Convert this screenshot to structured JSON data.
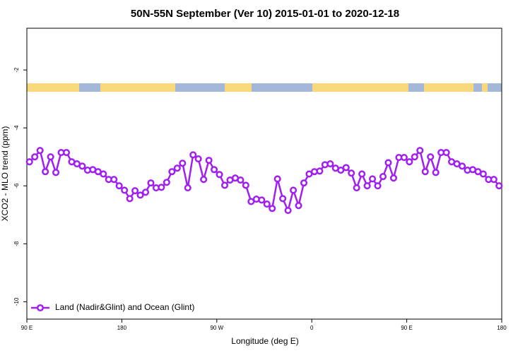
{
  "chart_data": {
    "type": "line",
    "title": "50N-55N September (Ver 10)   2015-01-01 to 2020-12-18",
    "x_label": "Longitude (deg E)",
    "y_label": "XCO2 - MLO trend (ppm)",
    "xlim": [
      90,
      540
    ],
    "ylim": [
      -10.6,
      -0.56
    ],
    "xticks": [
      {
        "value": 90,
        "label": "90 E"
      },
      {
        "value": 180,
        "label": "180"
      },
      {
        "value": 270,
        "label": "90 W"
      },
      {
        "value": 360,
        "label": "0"
      },
      {
        "value": 450,
        "label": "90 E"
      },
      {
        "value": 540,
        "label": "180"
      }
    ],
    "yticks": [
      -2,
      -4,
      -6,
      -8,
      -10
    ],
    "legend": "bottom-left",
    "x": [
      92.5,
      97.5,
      102.5,
      107.5,
      112.5,
      117.5,
      122.5,
      127.5,
      132.5,
      137.5,
      142.5,
      147.5,
      152.5,
      157.5,
      162.5,
      167.5,
      172.5,
      177.5,
      182.5,
      187.5,
      192.5,
      197.5,
      202.5,
      207.5,
      212.5,
      217.5,
      222.5,
      227.5,
      232.5,
      237.5,
      242.5,
      247.5,
      252.5,
      257.5,
      262.5,
      267.5,
      272.5,
      277.5,
      282.5,
      287.5,
      292.5,
      297.5,
      302.5,
      307.5,
      312.5,
      317.5,
      322.5,
      327.5,
      332.5,
      337.5,
      342.5,
      347.5,
      352.5,
      357.5,
      362.5,
      367.5,
      372.5,
      377.5,
      382.5,
      387.5,
      392.5,
      397.5,
      402.5,
      407.5,
      412.5,
      417.5,
      422.5,
      427.5,
      432.5,
      437.5,
      442.5,
      447.5,
      452.5,
      457.5,
      462.5,
      467.5,
      472.5,
      477.5,
      482.5,
      487.5,
      492.5,
      497.5,
      502.5,
      507.5,
      512.5,
      517.5,
      522.5,
      527.5,
      532.5,
      537.5
    ],
    "series": [
      {
        "name": "Land (Nadir&Glint) and Ocean (Glint)",
        "color": "#a020f0",
        "values": [
          -5.17,
          -5.0,
          -4.78,
          -5.51,
          -5.0,
          -5.54,
          -4.85,
          -4.85,
          -5.17,
          -5.24,
          -5.32,
          -5.46,
          -5.44,
          -5.51,
          -5.59,
          -5.78,
          -5.78,
          -6.0,
          -6.15,
          -6.44,
          -6.17,
          -6.32,
          -6.22,
          -5.9,
          -6.07,
          -6.05,
          -5.88,
          -5.51,
          -5.39,
          -5.22,
          -6.07,
          -4.93,
          -5.07,
          -5.78,
          -5.12,
          -5.44,
          -5.61,
          -5.98,
          -5.8,
          -5.73,
          -5.8,
          -5.98,
          -6.54,
          -6.46,
          -6.49,
          -6.63,
          -6.78,
          -5.76,
          -6.44,
          -6.85,
          -6.15,
          -6.68,
          -5.9,
          -5.59,
          -5.51,
          -5.49,
          -5.27,
          -5.24,
          -5.39,
          -5.46,
          -5.37,
          -5.56,
          -6.07,
          -5.59,
          -6.0,
          -5.76,
          -6.0,
          -5.68,
          -5.2,
          -5.73,
          -5.02,
          -5.02,
          -5.17,
          -5.0,
          -4.78,
          -5.51,
          -5.0,
          -5.54,
          -4.85,
          -4.85,
          -5.17,
          -5.24,
          -5.32,
          -5.46,
          -5.44,
          -5.51,
          -5.59,
          -5.78,
          -5.78,
          -6.0
        ]
      }
    ]
  }
}
